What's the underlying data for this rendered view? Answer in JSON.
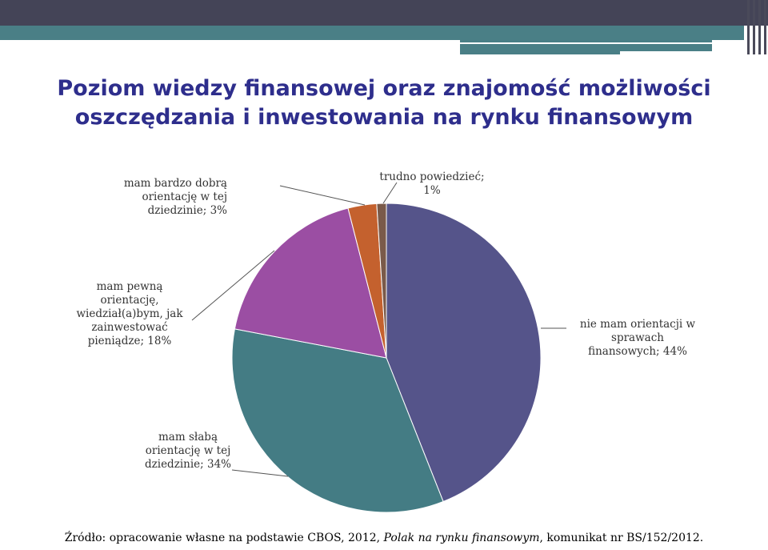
{
  "title_line1": "Poziom wiedzy finansowej oraz znajomość możliwości",
  "title_line2": "oszczędzania i inwestowania na rynku finansowym",
  "source": {
    "prefix": "Źródło: opracowanie własne na podstawie CBOS, 2012, ",
    "italic": "Polak na rynku finansowym",
    "suffix": ", komunikat nr BS/152/2012."
  },
  "chart_data": {
    "type": "pie",
    "title": "",
    "start_angle_deg": 0,
    "direction": "clockwise",
    "slices": [
      {
        "label": "nie mam orientacji w sprawach finansowych",
        "value": 44,
        "color": "#55548a",
        "label_lines": [
          "nie mam orientacji w",
          "sprawach",
          "finansowych; 44%"
        ]
      },
      {
        "label": "mam słabą orientację w tej dziedzinie",
        "value": 34,
        "color": "#447c84",
        "label_lines": [
          "mam słabą",
          "orientację w tej",
          "dziedzinie; 34%"
        ]
      },
      {
        "label": "mam pewną orientację, wiedział(a)bym, jak zainwestować pieniądze",
        "value": 18,
        "color": "#9b4ea3",
        "label_lines": [
          "mam pewną",
          "orientację,",
          "wiedział(a)bym, jak",
          "zainwestować",
          "pieniądze; 18%"
        ]
      },
      {
        "label": "mam bardzo dobrą orientację w tej dziedzinie",
        "value": 3,
        "color": "#c4612e",
        "label_lines": [
          "mam bardzo dobrą",
          "orientację w tej",
          "dziedzinie; 3%"
        ]
      },
      {
        "label": "trudno powiedzieć",
        "value": 1,
        "color": "#7a5a4a",
        "label_lines": [
          "trudno powiedzieć;",
          "1%"
        ]
      }
    ]
  }
}
